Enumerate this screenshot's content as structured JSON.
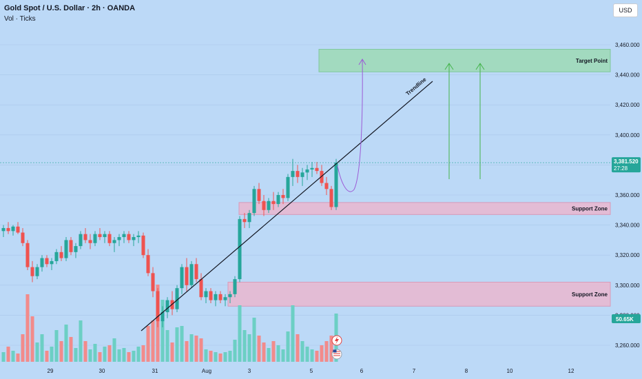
{
  "header": {
    "title": "Gold Spot / U.S. Dollar · 2h · OANDA",
    "subtitle": "Vol · Ticks",
    "currency_button": "USD"
  },
  "colors": {
    "background": "#bcd9f7",
    "up": "#26a69a",
    "down": "#ef5350",
    "vol_up": "#6ccfc4",
    "vol_down": "#f28b8b",
    "target_zone": "#9fd9b8",
    "support_zone": "#e7b8d0",
    "trendline": "#131722",
    "projection": "#9c5ad6",
    "arrow": "#43b34a",
    "price_tag": "#26a69a"
  },
  "chart_data": {
    "type": "candlestick",
    "price_axis": {
      "min": 3250,
      "max": 3470,
      "ticks": [
        "3,260.000",
        "3,280.000",
        "3,300.000",
        "3,320.000",
        "3,340.000",
        "3,360.000",
        "3,380.000",
        "3,400.000",
        "3,420.000",
        "3,440.000",
        "3,460.000"
      ]
    },
    "date_axis": [
      "29",
      "30",
      "31",
      "Aug",
      "3",
      "5",
      "6",
      "7",
      "8",
      "10",
      "12"
    ],
    "current_price": {
      "label": "3,381.520",
      "countdown": "27:28",
      "value": 3381.52
    },
    "volume_label": "50.65K",
    "zones": [
      {
        "label": "Target Point",
        "from": 3442,
        "to": 3457,
        "kind": "target"
      },
      {
        "label": "Support Zone",
        "from": 3347,
        "to": 3355,
        "kind": "support"
      },
      {
        "label": "Support Zone",
        "from": 3286,
        "to": 3302,
        "kind": "support"
      }
    ],
    "trendline_label": "Trendline",
    "candles": [
      [
        3336,
        3340,
        3332,
        3338
      ],
      [
        3338,
        3342,
        3334,
        3336
      ],
      [
        3336,
        3340,
        3333,
        3339
      ],
      [
        3339,
        3342,
        3334,
        3335
      ],
      [
        3335,
        3338,
        3326,
        3328
      ],
      [
        3328,
        3330,
        3310,
        3312
      ],
      [
        3312,
        3316,
        3302,
        3306
      ],
      [
        3306,
        3314,
        3304,
        3312
      ],
      [
        3312,
        3320,
        3309,
        3318
      ],
      [
        3318,
        3320,
        3312,
        3314
      ],
      [
        3314,
        3318,
        3310,
        3316
      ],
      [
        3316,
        3324,
        3314,
        3322
      ],
      [
        3322,
        3326,
        3316,
        3318
      ],
      [
        3318,
        3332,
        3316,
        3330
      ],
      [
        3330,
        3332,
        3320,
        3322
      ],
      [
        3322,
        3328,
        3318,
        3326
      ],
      [
        3326,
        3336,
        3324,
        3334
      ],
      [
        3334,
        3338,
        3328,
        3330
      ],
      [
        3330,
        3334,
        3324,
        3328
      ],
      [
        3328,
        3336,
        3326,
        3334
      ],
      [
        3334,
        3338,
        3330,
        3332
      ],
      [
        3332,
        3336,
        3328,
        3334
      ],
      [
        3334,
        3336,
        3326,
        3328
      ],
      [
        3328,
        3332,
        3322,
        3330
      ],
      [
        3330,
        3334,
        3326,
        3332
      ],
      [
        3332,
        3336,
        3328,
        3334
      ],
      [
        3334,
        3336,
        3328,
        3330
      ],
      [
        3330,
        3334,
        3326,
        3332
      ],
      [
        3332,
        3336,
        3328,
        3333
      ],
      [
        3333,
        3335,
        3318,
        3320
      ],
      [
        3320,
        3324,
        3306,
        3308
      ],
      [
        3308,
        3312,
        3292,
        3296
      ],
      [
        3296,
        3298,
        3272,
        3276
      ],
      [
        3276,
        3286,
        3272,
        3282
      ],
      [
        3282,
        3292,
        3278,
        3290
      ],
      [
        3290,
        3296,
        3280,
        3284
      ],
      [
        3284,
        3300,
        3282,
        3298
      ],
      [
        3298,
        3314,
        3294,
        3312
      ],
      [
        3312,
        3318,
        3296,
        3300
      ],
      [
        3300,
        3316,
        3298,
        3314
      ],
      [
        3314,
        3318,
        3302,
        3304
      ],
      [
        3304,
        3308,
        3290,
        3292
      ],
      [
        3292,
        3298,
        3288,
        3296
      ],
      [
        3296,
        3298,
        3288,
        3290
      ],
      [
        3290,
        3296,
        3286,
        3294
      ],
      [
        3294,
        3296,
        3288,
        3290
      ],
      [
        3290,
        3294,
        3286,
        3292
      ],
      [
        3292,
        3296,
        3288,
        3294
      ],
      [
        3294,
        3306,
        3292,
        3304
      ],
      [
        3304,
        3346,
        3302,
        3344
      ],
      [
        3344,
        3348,
        3338,
        3342
      ],
      [
        3342,
        3350,
        3338,
        3348
      ],
      [
        3348,
        3366,
        3346,
        3364
      ],
      [
        3364,
        3368,
        3354,
        3356
      ],
      [
        3356,
        3360,
        3346,
        3350
      ],
      [
        3350,
        3358,
        3348,
        3356
      ],
      [
        3356,
        3362,
        3350,
        3354
      ],
      [
        3354,
        3362,
        3352,
        3360
      ],
      [
        3360,
        3364,
        3354,
        3358
      ],
      [
        3358,
        3374,
        3356,
        3372
      ],
      [
        3372,
        3384,
        3366,
        3376
      ],
      [
        3376,
        3380,
        3368,
        3372
      ],
      [
        3372,
        3378,
        3366,
        3375
      ],
      [
        3375,
        3380,
        3370,
        3377
      ],
      [
        3377,
        3382,
        3372,
        3378
      ],
      [
        3378,
        3382,
        3374,
        3376
      ],
      [
        3376,
        3380,
        3366,
        3368
      ],
      [
        3368,
        3372,
        3360,
        3364
      ],
      [
        3364,
        3366,
        3350,
        3352
      ],
      [
        3352,
        3384,
        3350,
        3381.52
      ]
    ],
    "volumes": [
      [
        14,
        1
      ],
      [
        22,
        0
      ],
      [
        16,
        1
      ],
      [
        12,
        0
      ],
      [
        40,
        0
      ],
      [
        98,
        0
      ],
      [
        66,
        0
      ],
      [
        28,
        1
      ],
      [
        40,
        1
      ],
      [
        16,
        0
      ],
      [
        22,
        1
      ],
      [
        46,
        1
      ],
      [
        30,
        0
      ],
      [
        54,
        1
      ],
      [
        36,
        0
      ],
      [
        20,
        1
      ],
      [
        60,
        1
      ],
      [
        30,
        0
      ],
      [
        18,
        1
      ],
      [
        26,
        1
      ],
      [
        14,
        0
      ],
      [
        22,
        1
      ],
      [
        24,
        0
      ],
      [
        34,
        1
      ],
      [
        18,
        1
      ],
      [
        20,
        1
      ],
      [
        14,
        0
      ],
      [
        16,
        1
      ],
      [
        22,
        1
      ],
      [
        24,
        0
      ],
      [
        52,
        0
      ],
      [
        60,
        0
      ],
      [
        112,
        0
      ],
      [
        90,
        1
      ],
      [
        46,
        1
      ],
      [
        28,
        0
      ],
      [
        50,
        1
      ],
      [
        52,
        1
      ],
      [
        30,
        0
      ],
      [
        40,
        1
      ],
      [
        38,
        0
      ],
      [
        34,
        0
      ],
      [
        18,
        1
      ],
      [
        16,
        0
      ],
      [
        14,
        1
      ],
      [
        12,
        0
      ],
      [
        14,
        1
      ],
      [
        16,
        1
      ],
      [
        32,
        1
      ],
      [
        82,
        1
      ],
      [
        46,
        1
      ],
      [
        40,
        1
      ],
      [
        64,
        1
      ],
      [
        38,
        0
      ],
      [
        28,
        0
      ],
      [
        20,
        1
      ],
      [
        30,
        0
      ],
      [
        24,
        1
      ],
      [
        18,
        1
      ],
      [
        44,
        1
      ],
      [
        82,
        1
      ],
      [
        40,
        0
      ],
      [
        30,
        1
      ],
      [
        22,
        1
      ],
      [
        18,
        1
      ],
      [
        16,
        0
      ],
      [
        24,
        0
      ],
      [
        30,
        0
      ],
      [
        38,
        0
      ],
      [
        70,
        1
      ]
    ]
  }
}
